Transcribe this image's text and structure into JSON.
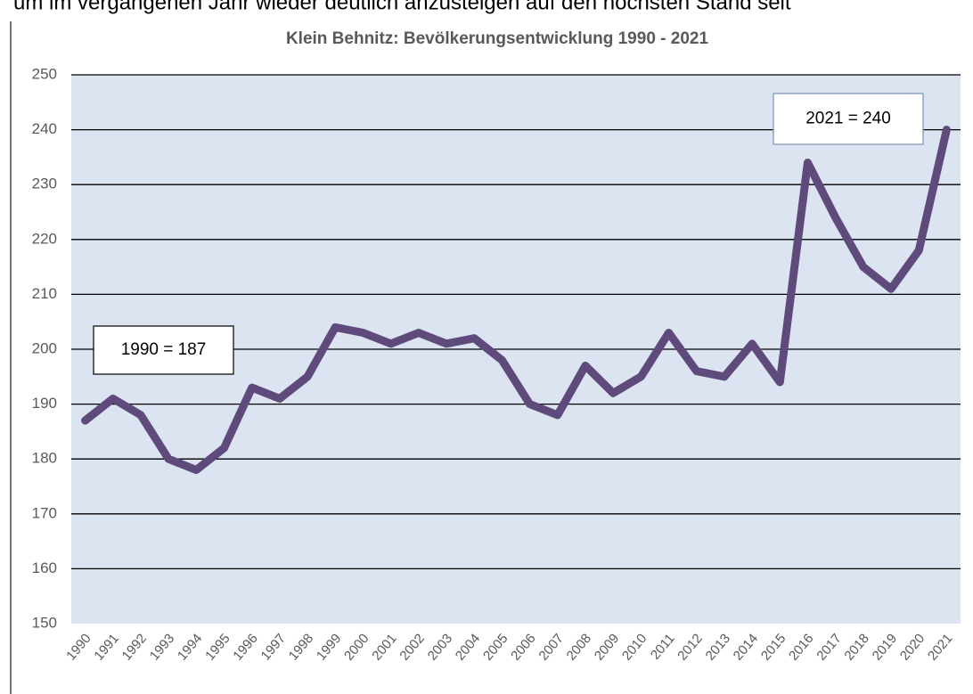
{
  "page_text": "um im vergangenen Jahr wieder deutlich anzusteigen auf den höchsten Stand seit",
  "chart_data": {
    "type": "line",
    "title": "Klein Behnitz: Bevölkerungsentwicklung 1990 - 2021",
    "categories": [
      "1990",
      "1991",
      "1992",
      "1993",
      "1994",
      "1995",
      "1996",
      "1997",
      "1998",
      "1999",
      "2000",
      "2001",
      "2002",
      "2003",
      "2004",
      "2005",
      "2006",
      "2007",
      "2008",
      "2009",
      "2010",
      "2011",
      "2012",
      "2013",
      "2014",
      "2015",
      "2016",
      "2017",
      "2018",
      "2019",
      "2020",
      "2021"
    ],
    "series": [
      {
        "color": "#5e4b7c",
        "values": [
          187,
          191,
          188,
          180,
          178,
          182,
          193,
          191,
          195,
          204,
          203,
          201,
          203,
          201,
          202,
          198,
          190,
          188,
          197,
          192,
          195,
          203,
          196,
          195,
          201,
          194,
          234,
          224,
          215,
          211,
          218,
          240
        ]
      }
    ],
    "ylim": [
      150,
      250
    ],
    "yticks": [
      150,
      160,
      170,
      180,
      190,
      200,
      210,
      220,
      230,
      240,
      250
    ],
    "grid": true,
    "annotations": [
      "1990 = 187",
      "2021 = 240"
    ]
  }
}
